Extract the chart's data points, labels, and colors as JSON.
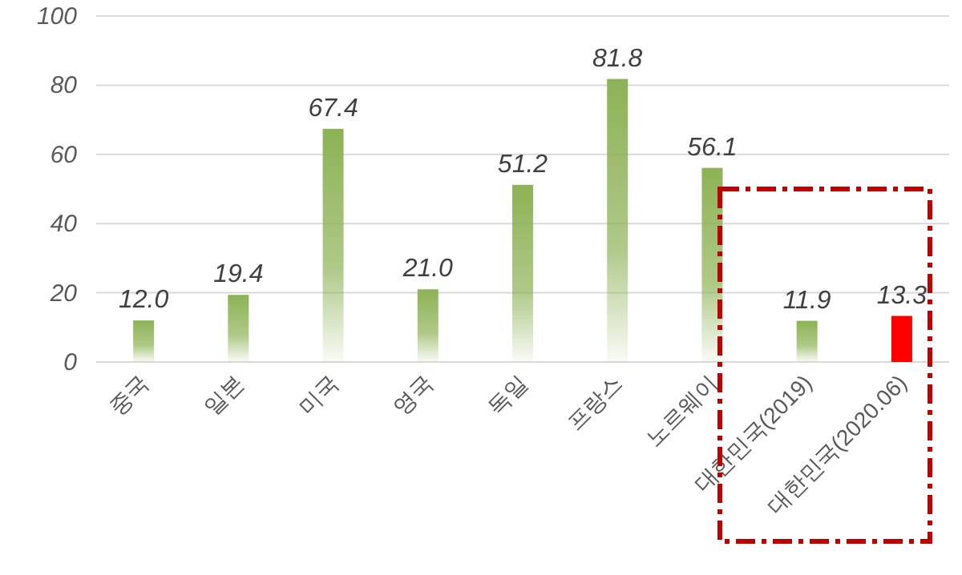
{
  "chart_data": {
    "type": "bar",
    "categories": [
      "중국",
      "일본",
      "미국",
      "영국",
      "독일",
      "프랑스",
      "노르웨이",
      "대한민국(2019)",
      "대한민국(2020.06)"
    ],
    "values": [
      12.0,
      19.4,
      67.4,
      21.0,
      51.2,
      81.8,
      56.1,
      11.9,
      13.3
    ],
    "value_labels": [
      "12.0",
      "19.4",
      "67.4",
      "21.0",
      "51.2",
      "81.8",
      "56.1",
      "11.9",
      "13.3"
    ],
    "colors": [
      "#8db255",
      "#8db255",
      "#8db255",
      "#8db255",
      "#8db255",
      "#8db255",
      "#8db255",
      "#8db255",
      "#ff0000"
    ],
    "ylim": [
      0,
      100
    ],
    "yticks": [
      0,
      20,
      40,
      60,
      80,
      100
    ],
    "grid": "y"
  }
}
